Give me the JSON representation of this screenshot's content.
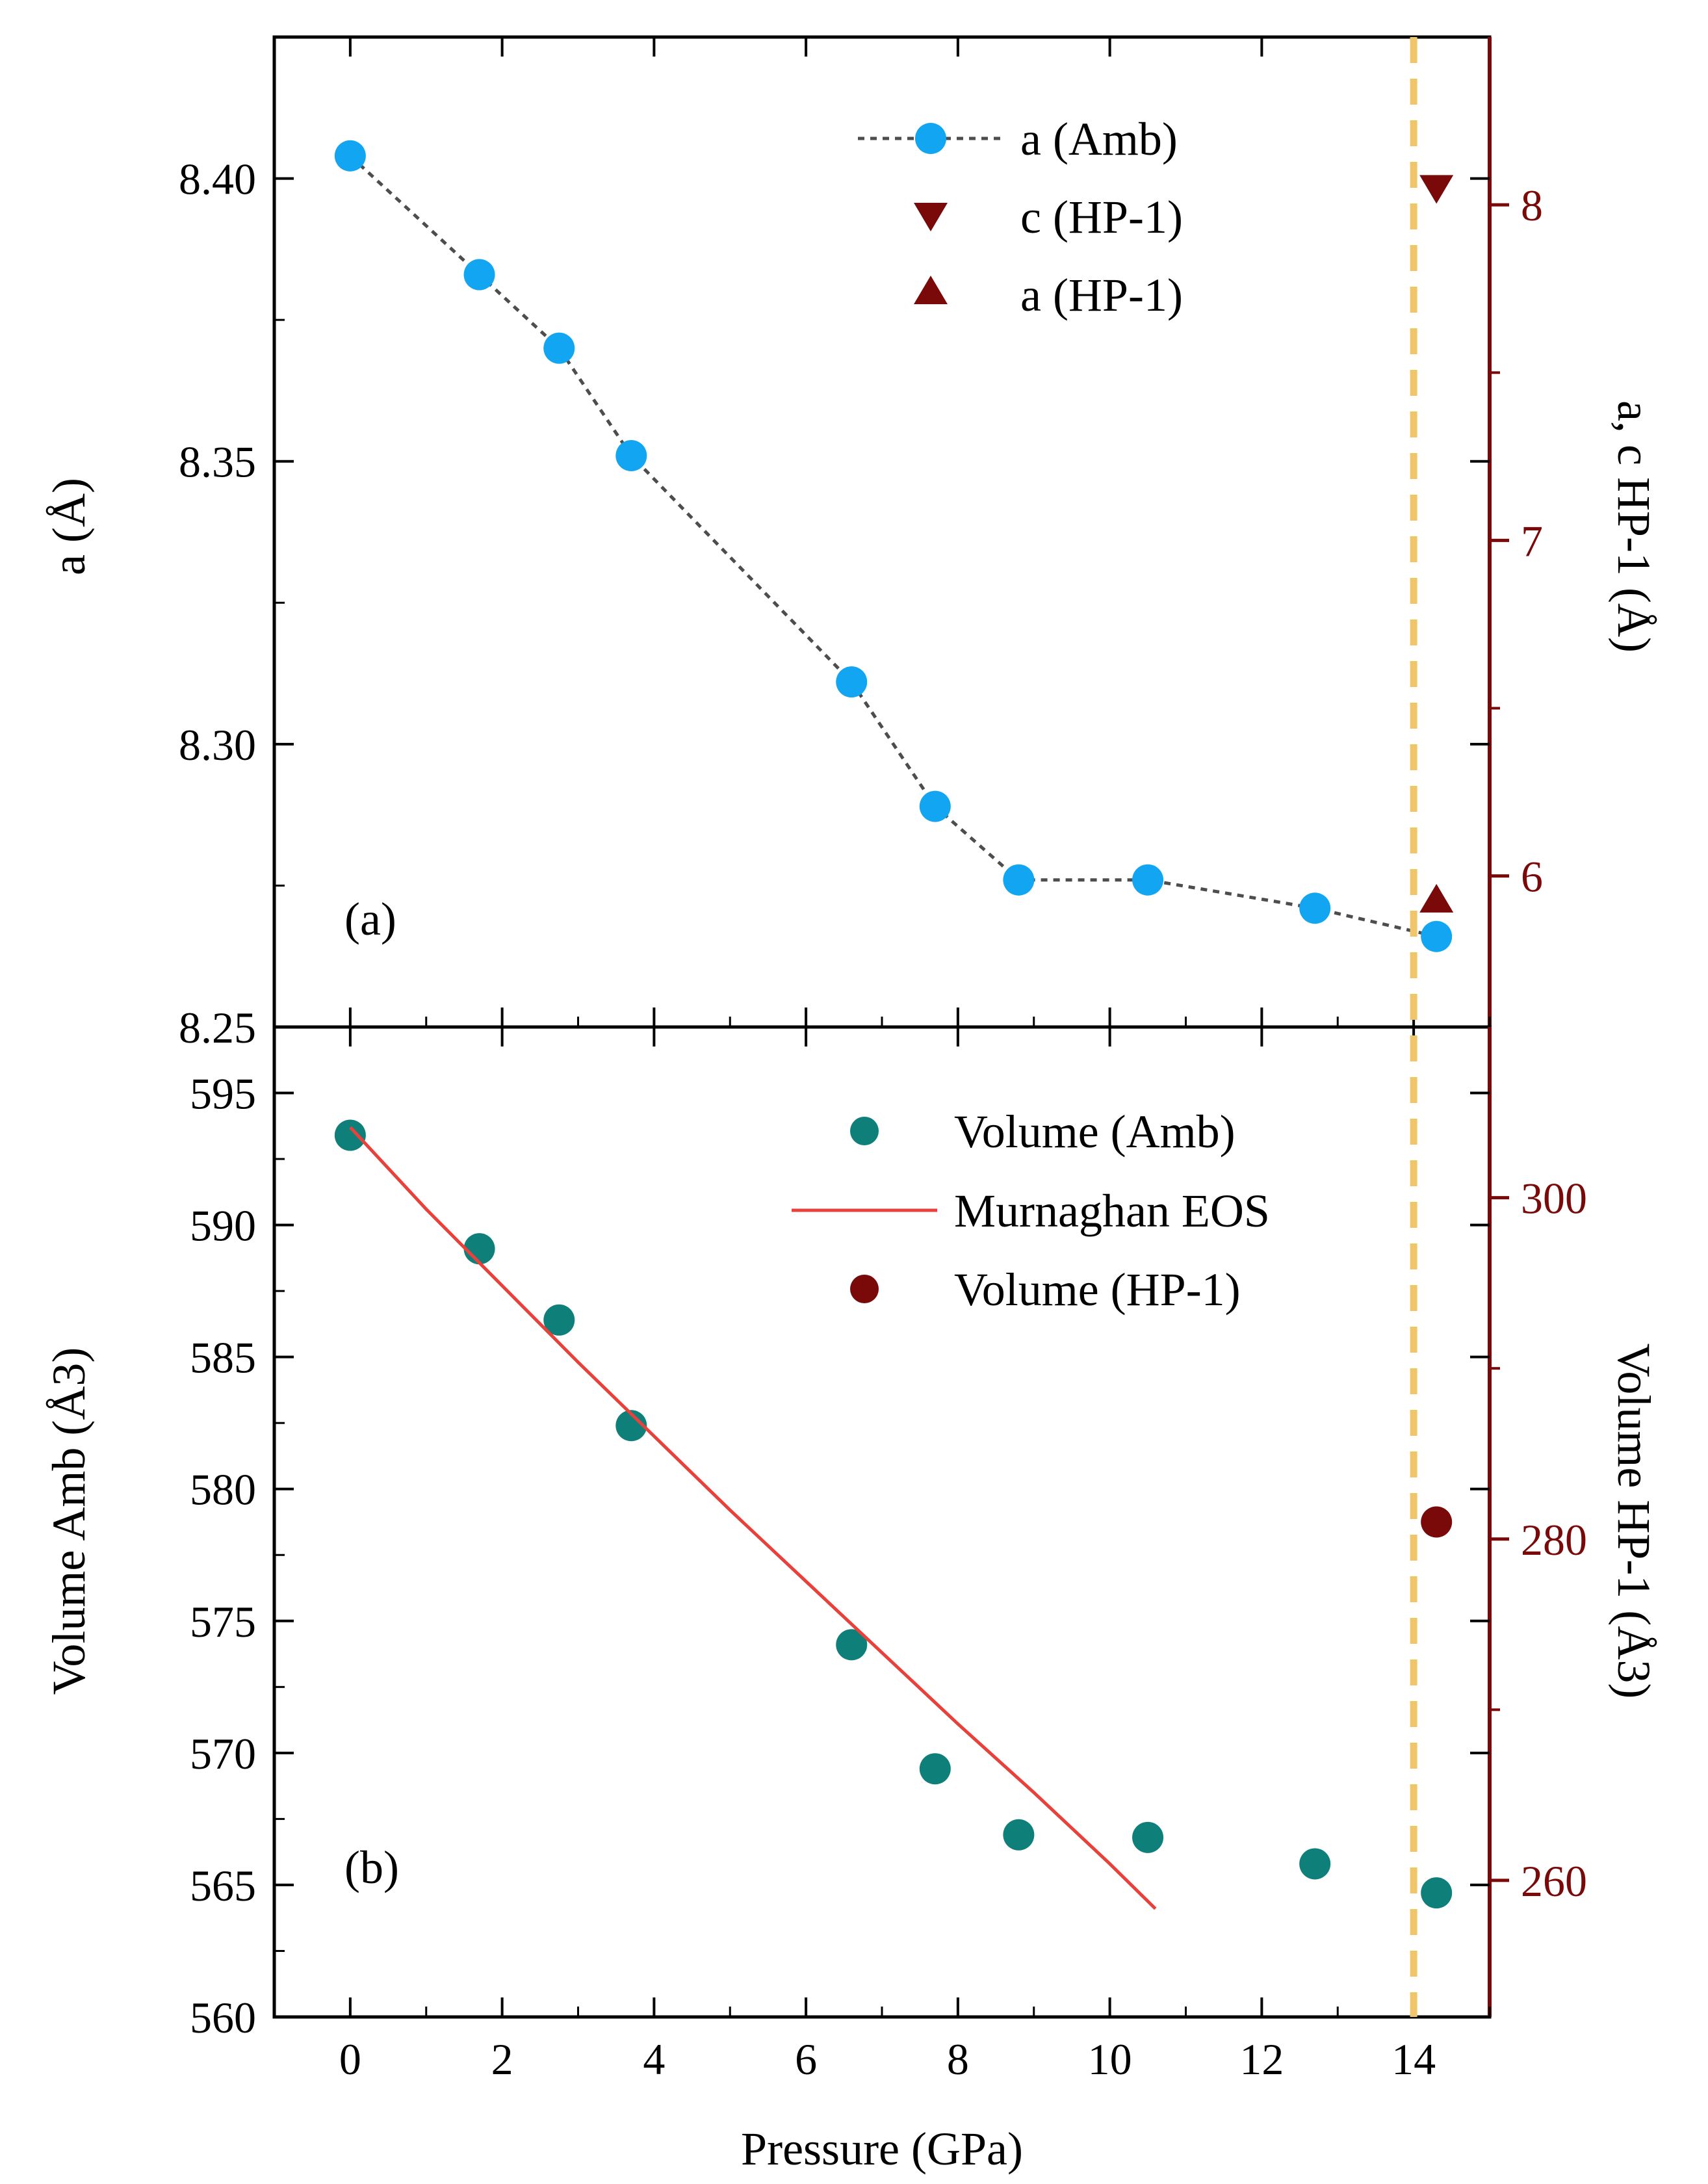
{
  "colors": {
    "amb_marker": "#12A5F2",
    "amb_line": "#4D4D4D",
    "hp_color": "#7A0A0A",
    "vol_amb_marker": "#0F7F7A",
    "eos_line": "#E8413B",
    "transition_line": "#F0C66A",
    "axis": "#000000"
  },
  "x_axis": {
    "title": "Pressure (GPa)",
    "range": [
      -1,
      15
    ],
    "ticks": [
      "0",
      "2",
      "4",
      "6",
      "8",
      "10",
      "12",
      "14"
    ],
    "tick_values": [
      0,
      2,
      4,
      6,
      8,
      10,
      12,
      14
    ],
    "transition_pressure": 14.0
  },
  "chart_data": [
    {
      "type": "line",
      "panel_label": "(a)",
      "xlabel": "Pressure (GPa)",
      "ylabel": "a (Å)",
      "ylim": [
        8.25,
        8.425
      ],
      "y_ticks": [
        "8.25",
        "8.30",
        "8.35",
        "8.40"
      ],
      "y_tick_values": [
        8.25,
        8.3,
        8.35,
        8.4
      ],
      "ylabel_right": "a, c HP-1 (Å)",
      "ylim_right": [
        5.55,
        8.5
      ],
      "y_ticks_right": [
        "6",
        "7",
        "8"
      ],
      "y_tick_values_right": [
        6,
        7,
        8
      ],
      "series": [
        {
          "name": "a (Amb)",
          "axis": "left",
          "marker": "circle",
          "line": "dotted",
          "x": [
            0,
            1.7,
            2.75,
            3.7,
            6.6,
            7.7,
            8.8,
            10.5,
            12.7,
            14.3
          ],
          "y": [
            8.404,
            8.383,
            8.37,
            8.351,
            8.311,
            8.289,
            8.276,
            8.276,
            8.271,
            8.266
          ]
        },
        {
          "name": "c (HP-1)",
          "axis": "right",
          "marker": "triangle-down",
          "x": [
            14.3
          ],
          "y": [
            8.05
          ]
        },
        {
          "name": "a (HP-1)",
          "axis": "right",
          "marker": "triangle-up",
          "x": [
            14.3
          ],
          "y": [
            5.93
          ]
        }
      ],
      "legend": [
        "a (Amb)",
        "c (HP-1)",
        "a (HP-1)"
      ]
    },
    {
      "type": "scatter",
      "panel_label": "(b)",
      "xlabel": "Pressure (GPa)",
      "ylabel": "Volume Amb (Å3)",
      "ylim": [
        560,
        597.5
      ],
      "y_ticks": [
        "560",
        "565",
        "570",
        "575",
        "580",
        "585",
        "590",
        "595"
      ],
      "y_tick_values": [
        560,
        565,
        570,
        575,
        580,
        585,
        590,
        595
      ],
      "ylabel_right": "Volume HP-1 (Å3)",
      "ylim_right": [
        252,
        310
      ],
      "y_ticks_right": [
        "260",
        "280",
        "300"
      ],
      "y_tick_values_right": [
        260,
        280,
        300
      ],
      "series": [
        {
          "name": "Volume (Amb)",
          "axis": "left",
          "marker": "circle",
          "x": [
            0,
            1.7,
            2.75,
            3.7,
            6.6,
            7.7,
            8.8,
            10.5,
            12.7,
            14.3
          ],
          "y": [
            593.4,
            589.1,
            586.4,
            582.4,
            574.1,
            569.4,
            566.9,
            566.8,
            565.8,
            564.7
          ]
        },
        {
          "name": "Murnaghan EOS",
          "axis": "left",
          "line": "solid",
          "x": [
            0,
            1,
            2,
            3,
            4,
            5,
            6,
            7,
            8,
            9,
            10,
            10.6
          ],
          "y": [
            593.7,
            590.6,
            587.7,
            584.8,
            582.0,
            579.2,
            576.5,
            573.8,
            571.1,
            568.5,
            565.8,
            564.1
          ]
        },
        {
          "name": "Volume (HP-1)",
          "axis": "right",
          "marker": "circle",
          "x": [
            14.3
          ],
          "y": [
            281.0
          ]
        }
      ],
      "legend": [
        "Volume (Amb)",
        "Murnaghan EOS",
        "Volume (HP-1)"
      ]
    }
  ]
}
